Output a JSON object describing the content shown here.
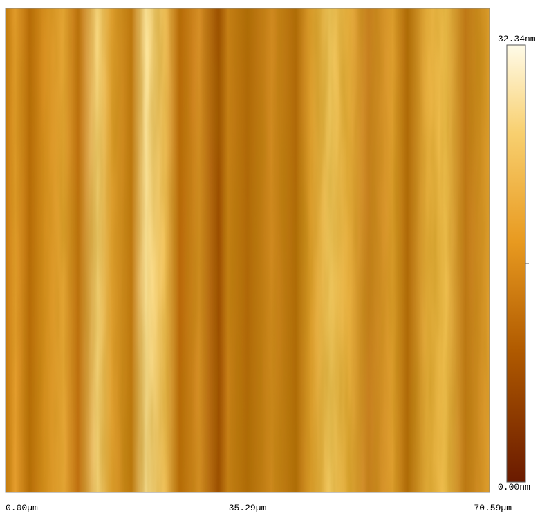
{
  "x_axis": {
    "labels": [
      "0.00µm",
      "35.29µm",
      "70.59µm"
    ]
  },
  "colorbar": {
    "max_label": "32.34nm",
    "min_label": "0.00nm"
  }
}
